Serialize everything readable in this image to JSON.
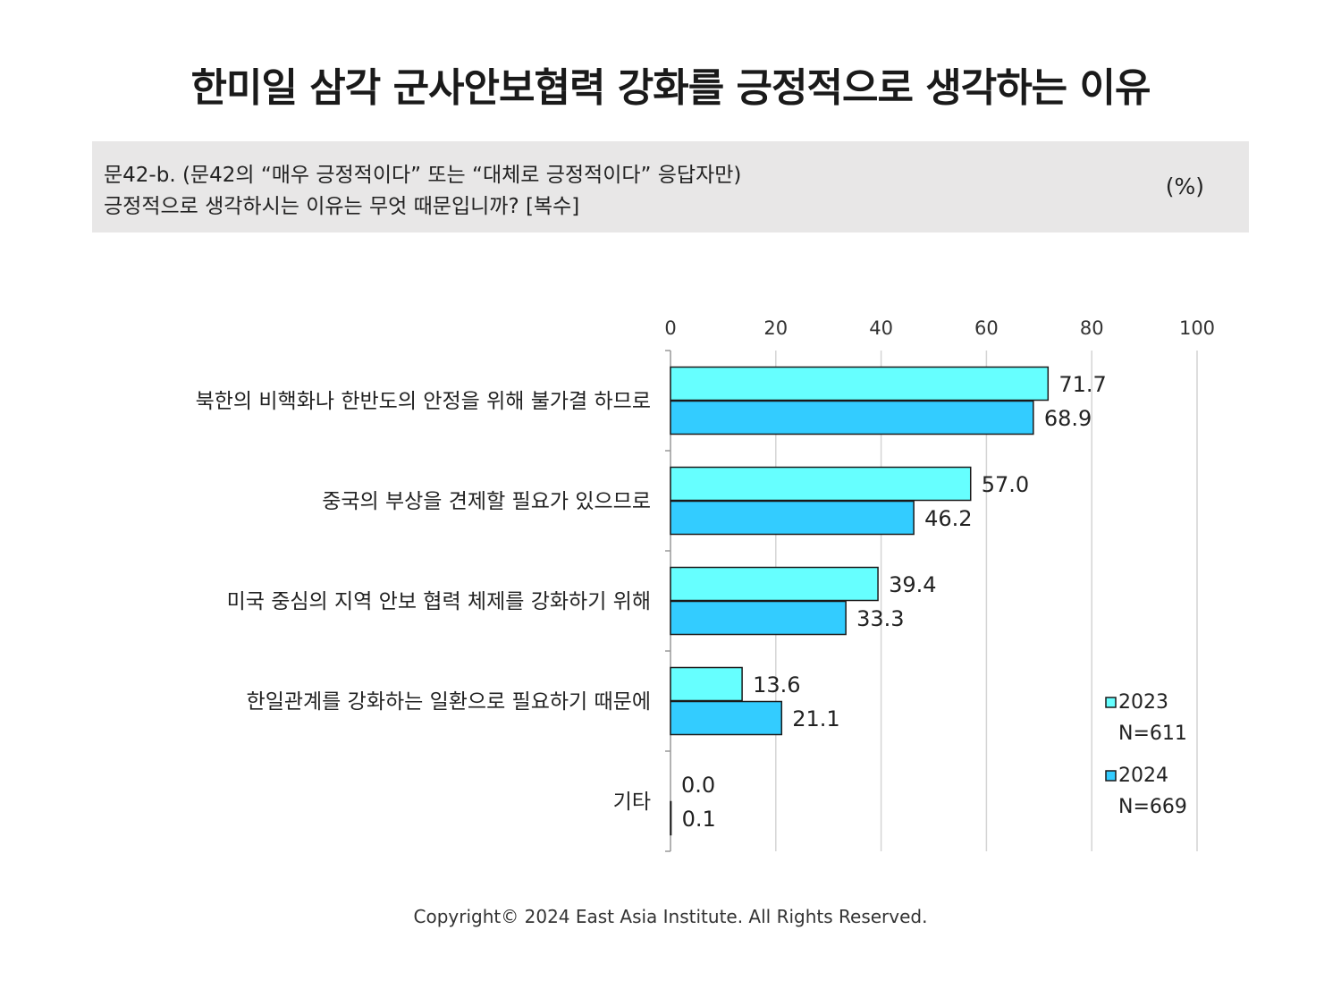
{
  "header": {
    "title": "한미일 삼각 군사안보협력 강화를 긍정적으로 생각하는 이유",
    "question_line1": "문42-b. (문42의 “매우 긍정적이다” 또는 “대체로 긍정적이다” 응답자만)",
    "question_line2": "긍정적으로 생각하시는 이유는 무엇 때문입니까? [복수]",
    "unit": "(%)"
  },
  "chart_data": {
    "type": "bar",
    "orientation": "horizontal",
    "categories": [
      "북한의 비핵화나 한반도의 안정을 위해 불가결 하므로",
      "중국의 부상을 견제할 필요가 있으므로",
      "미국 중심의 지역 안보 협력 체제를 강화하기 위해",
      "한일관계를 강화하는 일환으로 필요하기 때문에",
      "기타"
    ],
    "series": [
      {
        "name": "2023",
        "n_label": "N=611",
        "color": "#66ffff",
        "values": [
          71.7,
          57.0,
          39.4,
          13.6,
          0.0
        ],
        "labels": [
          "71.7",
          "57.0",
          "39.4",
          "13.6",
          "0.0"
        ]
      },
      {
        "name": "2024",
        "n_label": "N=669",
        "color": "#33ccff",
        "values": [
          68.9,
          46.2,
          33.3,
          21.1,
          0.1
        ],
        "labels": [
          "68.9",
          "46.2",
          "33.3",
          "21.1",
          "0.1"
        ]
      }
    ],
    "xlim": [
      0,
      100
    ],
    "xticks": [
      "0",
      "20",
      "40",
      "60",
      "80",
      "100"
    ],
    "grid": true,
    "legend_position": "bottom-right"
  },
  "footer": {
    "copyright": "Copyright© 2024 East Asia Institute. All Rights Reserved."
  }
}
